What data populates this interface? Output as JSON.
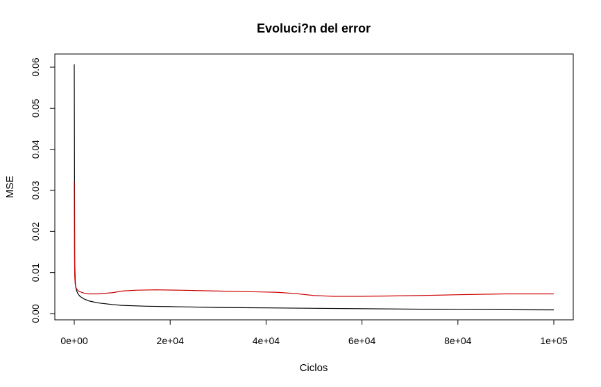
{
  "chart_data": {
    "type": "line",
    "title": "Evoluci?n del error",
    "xlabel": "Ciclos",
    "ylabel": "MSE",
    "xlim": [
      0,
      100000
    ],
    "ylim": [
      0,
      0.06
    ],
    "xticks": [
      0,
      20000,
      40000,
      60000,
      80000,
      100000
    ],
    "xtick_labels": [
      "0e+00",
      "2e+04",
      "4e+04",
      "6e+04",
      "8e+04",
      "1e+05"
    ],
    "yticks": [
      0,
      0.01,
      0.02,
      0.03,
      0.04,
      0.05,
      0.06
    ],
    "ytick_labels": [
      "0.00",
      "0.01",
      "0.02",
      "0.03",
      "0.04",
      "0.05",
      "0.06"
    ],
    "grid": false,
    "legend": "none",
    "series": [
      {
        "color": "#000000",
        "x": [
          0,
          50,
          100,
          200,
          300,
          500,
          800,
          1200,
          2000,
          3000,
          5000,
          8000,
          10000,
          15000,
          20000,
          30000,
          40000,
          50000,
          60000,
          70000,
          80000,
          90000,
          100000
        ],
        "y": [
          0.0607,
          0.035,
          0.012,
          0.008,
          0.0065,
          0.0055,
          0.0048,
          0.0042,
          0.0036,
          0.0031,
          0.0026,
          0.0022,
          0.002,
          0.0018,
          0.0017,
          0.0015,
          0.0014,
          0.0013,
          0.0012,
          0.0011,
          0.001,
          0.00095,
          0.0009
        ]
      },
      {
        "color": "#cc0000",
        "x": [
          0,
          50,
          100,
          200,
          400,
          700,
          1000,
          2000,
          3000,
          5000,
          8000,
          10000,
          13000,
          17000,
          22000,
          30000,
          38000,
          42000,
          46000,
          50000,
          54000,
          60000,
          66000,
          72000,
          80000,
          90000,
          100000
        ],
        "y": [
          0.032,
          0.015,
          0.009,
          0.0072,
          0.0062,
          0.0057,
          0.0054,
          0.005,
          0.0048,
          0.0048,
          0.0051,
          0.0055,
          0.0057,
          0.0058,
          0.0057,
          0.0055,
          0.0053,
          0.0052,
          0.0049,
          0.0044,
          0.0042,
          0.0042,
          0.0043,
          0.0044,
          0.0046,
          0.0048,
          0.0048
        ]
      }
    ]
  }
}
